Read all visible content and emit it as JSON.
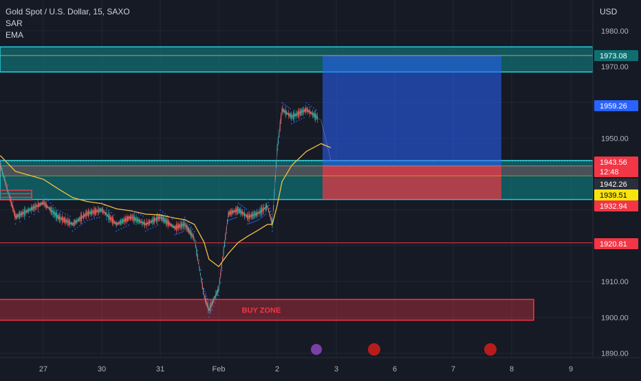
{
  "header": {
    "symbol": "Gold Spot / U.S. Dollar, 15, SAXO",
    "indicators": [
      "SAR",
      "EMA"
    ],
    "currency": "USD"
  },
  "colors": {
    "background": "#161a25",
    "zone_fill": "#0f6e70",
    "zone_border": "#22d3e0",
    "target_fill": "#2962ff",
    "stop_fill": "#f23645",
    "candle": "#26a69a",
    "candle_down": "#ef5350",
    "sar": "#2962ff",
    "ema": "#f5c242",
    "buy_zone": "#f23645"
  },
  "chart_data": {
    "type": "line",
    "title": "Gold Spot / U.S. Dollar, 15, SAXO",
    "xlabel": "",
    "ylabel": "USD",
    "ylim": [
      1888,
      1983
    ],
    "x_ticks": [
      "27",
      "30",
      "31",
      "Feb",
      "2",
      "3",
      "6",
      "7",
      "8",
      "9"
    ],
    "y_ticks": [
      "1980.00",
      "1970.00",
      "1950.00",
      "1910.00",
      "1900.00",
      "1890.00"
    ],
    "series": [
      {
        "name": "",
        "x": [
          "26 00:00",
          "26 06:00",
          "26 12:00",
          "27 00:00",
          "27 06:00",
          "27 12:00",
          "27 18:00",
          "30 00:00",
          "30 06:00",
          "30 12:00",
          "30 18:00",
          "31 00:00",
          "31 06:00",
          "31 10:00",
          "31 14:00",
          "31 18:00",
          "31 20:00",
          "Feb 00:00",
          "Feb 04:00",
          "Feb 08:00",
          "Feb 12:00",
          "Feb 16:00",
          "Feb 20:00",
          "1 22:00",
          "2 00:00",
          "2 02:00",
          "2 06:00",
          "2 12:00",
          "2 18:00",
          "2 22:00"
        ],
        "values": [
          1946,
          1942,
          1928,
          1932,
          1928,
          1926,
          1929,
          1930,
          1926,
          1928,
          1926,
          1928,
          1925,
          1926,
          1922,
          1906,
          1902,
          1908,
          1929,
          1930,
          1928,
          1929,
          1931,
          1926,
          1947,
          1958,
          1956,
          1958,
          1955,
          1944
        ]
      }
    ],
    "levels": [
      {
        "label": "1973.08",
        "value": 1973.08
      },
      {
        "label": "1959.26",
        "value": 1959.26
      },
      {
        "label": "1943.56",
        "value": 1943.56,
        "sublabel": "12:48"
      },
      {
        "label": "1942.26",
        "value": 1942.26
      },
      {
        "label": "1939.51",
        "value": 1939.51
      },
      {
        "label": "1932.94",
        "value": 1932.94
      },
      {
        "label": "1920.81",
        "value": 1920.81
      }
    ],
    "zones": [
      {
        "label": "",
        "from": 1968.5,
        "to": 1975.5
      },
      {
        "label": "",
        "from": 1932.9,
        "to": 1943.8
      },
      {
        "label": "BUY ZONE",
        "from": 1899.2,
        "to": 1905.0
      }
    ],
    "position": {
      "entry": 1942.26,
      "target": 1973.08,
      "stop": 1932.94
    },
    "legend": "none",
    "grid": true
  }
}
